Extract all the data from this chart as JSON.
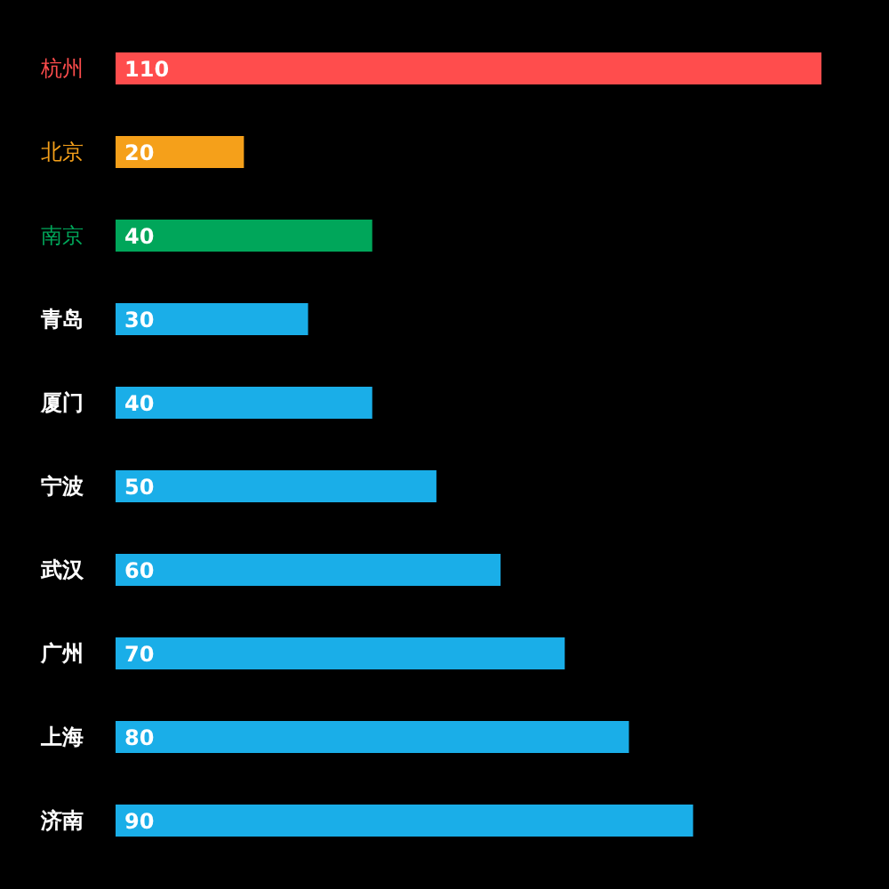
{
  "chart_data": {
    "type": "bar",
    "orientation": "horizontal",
    "categories": [
      "杭州",
      "北京",
      "南京",
      "青岛",
      "厦门",
      "宁波",
      "武汉",
      "广州",
      "上海",
      "济南"
    ],
    "values": [
      110,
      20,
      40,
      30,
      40,
      50,
      60,
      70,
      80,
      90
    ],
    "colors": [
      "#ff4d4d",
      "#f5a01a",
      "#00a65a",
      "#1aaee8",
      "#1aaee8",
      "#1aaee8",
      "#1aaee8",
      "#1aaee8",
      "#1aaee8",
      "#1aaee8"
    ],
    "data_labels": true
  }
}
